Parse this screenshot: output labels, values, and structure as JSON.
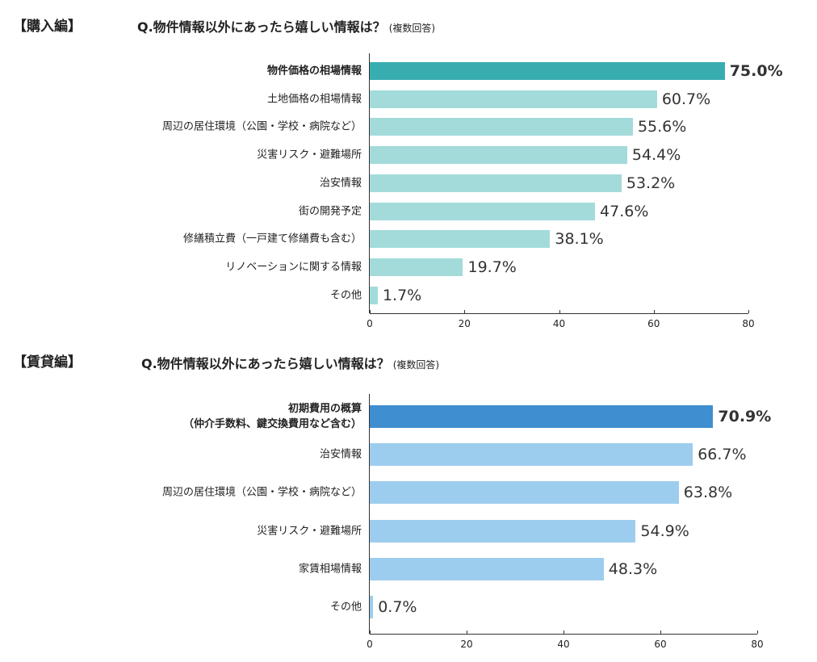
{
  "chart_data": [
    {
      "type": "bar",
      "section": "【購入編】",
      "title": "Q.物件情報以外にあったら嬉しい情報は？",
      "subtitle": "(複数回答)",
      "categories": [
        "物件価格の相場情報",
        "土地価格の相場情報",
        "周辺の居住環境（公園・学校・病院など）",
        "災害リスク・避難場所",
        "治安情報",
        "街の開発予定",
        "修繕積立費（一戸建て修繕費も含む）",
        "リノベーションに関する情報",
        "その他"
      ],
      "values": [
        75.0,
        60.7,
        55.6,
        54.4,
        53.2,
        47.6,
        38.1,
        19.7,
        1.7
      ],
      "value_labels": [
        "75.0%",
        "60.7%",
        "55.6%",
        "54.4%",
        "53.2%",
        "47.6%",
        "38.1%",
        "19.7%",
        "1.7%"
      ],
      "colors": [
        "#38adb0",
        "#a3dbdb",
        "#a3dbdb",
        "#a3dbdb",
        "#a3dbdb",
        "#a3dbdb",
        "#a3dbdb",
        "#a3dbdb",
        "#a3dbdb"
      ],
      "xlim": [
        0,
        80
      ],
      "xticks": [
        0,
        20,
        40,
        60,
        80
      ]
    },
    {
      "type": "bar",
      "section": "【賃貸編】",
      "title": "Q.物件情報以外にあったら嬉しい情報は？",
      "subtitle": "(複数回答)",
      "categories": [
        "初期費用の概算\n（仲介手数料、鍵交換費用など含む）",
        "治安情報",
        "周辺の居住環境（公園・学校・病院など）",
        "災害リスク・避難場所",
        "家賃相場情報",
        "その他"
      ],
      "values": [
        70.9,
        66.7,
        63.8,
        54.9,
        48.3,
        0.7
      ],
      "value_labels": [
        "70.9%",
        "66.7%",
        "63.8%",
        "54.9%",
        "48.3%",
        "0.7%"
      ],
      "colors": [
        "#3e8ed0",
        "#9dcdee",
        "#9dcdee",
        "#9dcdee",
        "#9dcdee",
        "#9dcdee"
      ],
      "xlim": [
        0,
        80
      ],
      "xticks": [
        0,
        20,
        40,
        60,
        80
      ]
    }
  ]
}
